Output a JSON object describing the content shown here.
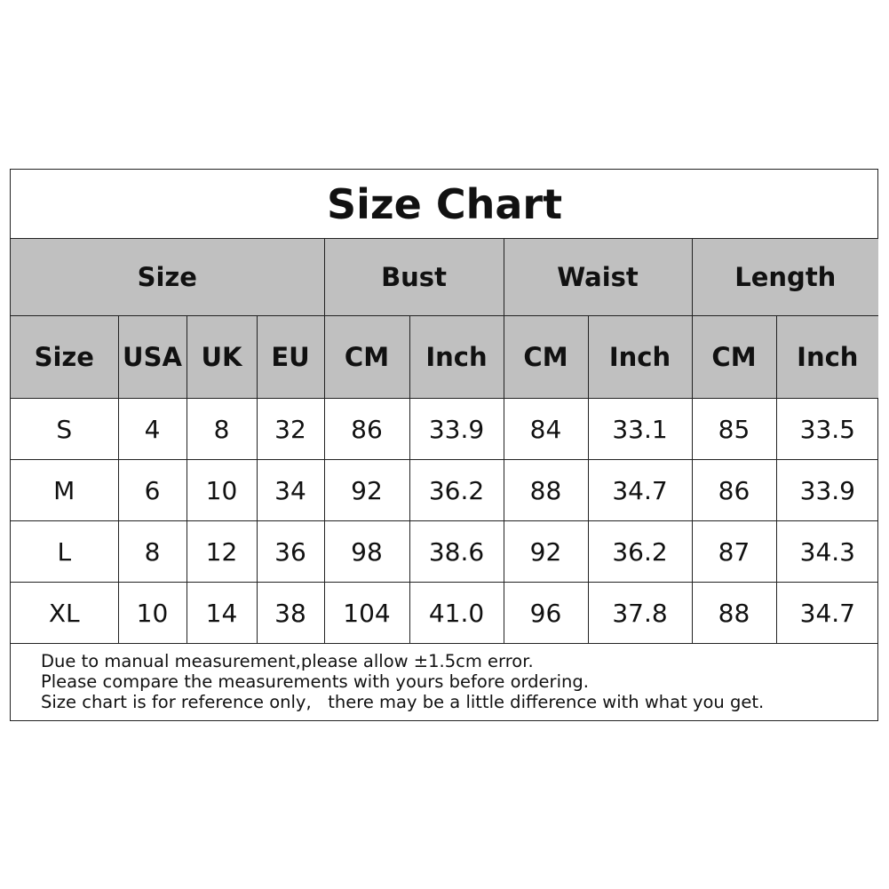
{
  "title": "Size Chart",
  "group_headers": [
    {
      "label": "Size",
      "span": 4
    },
    {
      "label": "Bust",
      "span": 2
    },
    {
      "label": "Waist",
      "span": 2
    },
    {
      "label": "Length",
      "span": 2
    }
  ],
  "column_headers": [
    "Size",
    "USA",
    "UK",
    "EU",
    "CM",
    "Inch",
    "CM",
    "Inch",
    "CM",
    "Inch"
  ],
  "rows": [
    [
      "S",
      "4",
      "8",
      "32",
      "86",
      "33.9",
      "84",
      "33.1",
      "85",
      "33.5"
    ],
    [
      "M",
      "6",
      "10",
      "34",
      "92",
      "36.2",
      "88",
      "34.7",
      "86",
      "33.9"
    ],
    [
      "L",
      "8",
      "12",
      "36",
      "98",
      "38.6",
      "92",
      "36.2",
      "87",
      "34.3"
    ],
    [
      "XL",
      "10",
      "14",
      "38",
      "104",
      "41.0",
      "96",
      "37.8",
      "88",
      "34.7"
    ]
  ],
  "notes": [
    "Due to manual measurement,please allow ±1.5cm error.",
    "Please compare the measurements with yours before ordering.",
    "Size chart is for reference only,   there may be a little difference with what you get."
  ],
  "colors": {
    "header_bg": "#c0c0c0",
    "border": "#222222"
  }
}
